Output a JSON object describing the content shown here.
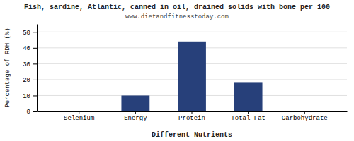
{
  "chart_data": {
    "type": "bar",
    "title": "Fish, sardine, Atlantic, canned in oil, drained solids with bone per 100",
    "subtitle": "www.dietandfitnesstoday.com",
    "categories": [
      "Selenium",
      "Energy",
      "Protein",
      "Total Fat",
      "Carbohydrate"
    ],
    "values": [
      0,
      10,
      44,
      18,
      0
    ],
    "color": "#27407a",
    "xlabel": "Different Nutrients",
    "ylabel": "Percentage of RDH (%)",
    "ylim": [
      0,
      55
    ],
    "yticks": [
      0,
      10,
      20,
      30,
      40,
      50
    ],
    "grid": true
  }
}
